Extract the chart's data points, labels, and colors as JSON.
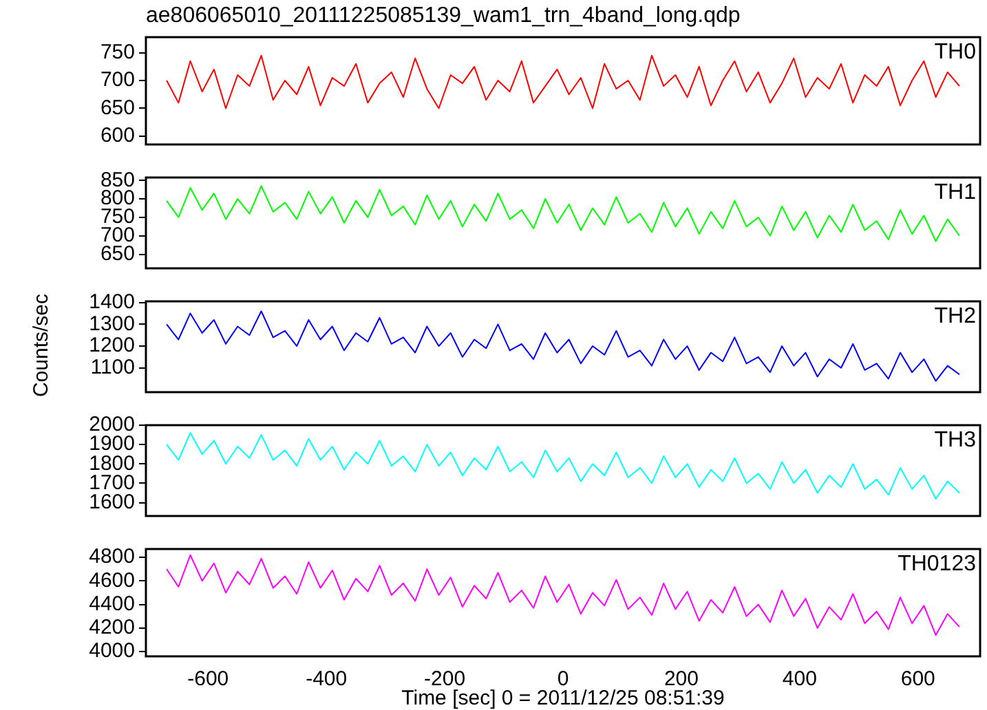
{
  "chart_data": [
    {
      "type": "line",
      "title": "ae806065010_20111225085139_wam1_trn_4band_long.qdp",
      "xlim": [
        -705,
        705
      ],
      "ylim": [
        585,
        778
      ],
      "yticks": [
        600,
        650,
        700,
        750
      ],
      "tick_labels": "y",
      "series": [
        {
          "name": "TH0",
          "color": "#ff0000",
          "x": [
            -670,
            -650,
            -630,
            -610,
            -590,
            -570,
            -550,
            -530,
            -510,
            -490,
            -470,
            -450,
            -430,
            -410,
            -390,
            -370,
            -350,
            -330,
            -310,
            -290,
            -270,
            -250,
            -230,
            -210,
            -190,
            -170,
            -150,
            -130,
            -110,
            -90,
            -70,
            -50,
            -30,
            -10,
            10,
            30,
            50,
            70,
            90,
            110,
            130,
            150,
            170,
            190,
            210,
            230,
            250,
            270,
            290,
            310,
            330,
            350,
            370,
            390,
            410,
            430,
            450,
            470,
            490,
            510,
            530,
            550,
            570,
            590,
            610,
            630,
            650,
            670
          ],
          "values": [
            700,
            660,
            735,
            680,
            720,
            650,
            710,
            690,
            745,
            665,
            700,
            675,
            725,
            655,
            705,
            690,
            730,
            660,
            695,
            715,
            670,
            740,
            685,
            650,
            710,
            695,
            725,
            665,
            700,
            680,
            735,
            660,
            690,
            720,
            675,
            705,
            650,
            730,
            685,
            700,
            665,
            745,
            690,
            710,
            670,
            725,
            655,
            700,
            735,
            680,
            715,
            660,
            695,
            740,
            670,
            705,
            685,
            730,
            660,
            710,
            690,
            725,
            655,
            700,
            735,
            670,
            715,
            690
          ]
        }
      ]
    },
    {
      "type": "line",
      "xlim": [
        -705,
        705
      ],
      "ylim": [
        612,
        858
      ],
      "yticks": [
        650,
        700,
        750,
        800,
        850
      ],
      "tick_labels": "y",
      "series": [
        {
          "name": "TH1",
          "color": "#00ff00",
          "x": [
            -670,
            -650,
            -630,
            -610,
            -590,
            -570,
            -550,
            -530,
            -510,
            -490,
            -470,
            -450,
            -430,
            -410,
            -390,
            -370,
            -350,
            -330,
            -310,
            -290,
            -270,
            -250,
            -230,
            -210,
            -190,
            -170,
            -150,
            -130,
            -110,
            -90,
            -70,
            -50,
            -30,
            -10,
            10,
            30,
            50,
            70,
            90,
            110,
            130,
            150,
            170,
            190,
            210,
            230,
            250,
            270,
            290,
            310,
            330,
            350,
            370,
            390,
            410,
            430,
            450,
            470,
            490,
            510,
            530,
            550,
            570,
            590,
            610,
            630,
            650,
            670
          ],
          "values": [
            795,
            750,
            830,
            770,
            815,
            745,
            800,
            760,
            835,
            765,
            790,
            745,
            820,
            760,
            805,
            735,
            795,
            750,
            825,
            755,
            780,
            730,
            810,
            745,
            795,
            725,
            785,
            740,
            815,
            745,
            770,
            720,
            800,
            735,
            785,
            715,
            775,
            730,
            805,
            735,
            760,
            710,
            790,
            725,
            775,
            705,
            765,
            720,
            795,
            725,
            750,
            700,
            780,
            715,
            765,
            695,
            755,
            710,
            785,
            715,
            740,
            690,
            770,
            705,
            755,
            685,
            745,
            700
          ]
        }
      ]
    },
    {
      "type": "line",
      "ylabel": "Counts/sec",
      "xlim": [
        -705,
        705
      ],
      "ylim": [
        989,
        1405
      ],
      "yticks": [
        1100,
        1200,
        1300,
        1400
      ],
      "tick_labels": "y",
      "series": [
        {
          "name": "TH2",
          "color": "#0000ff",
          "x": [
            -670,
            -650,
            -630,
            -610,
            -590,
            -570,
            -550,
            -530,
            -510,
            -490,
            -470,
            -450,
            -430,
            -410,
            -390,
            -370,
            -350,
            -330,
            -310,
            -290,
            -270,
            -250,
            -230,
            -210,
            -190,
            -170,
            -150,
            -130,
            -110,
            -90,
            -70,
            -50,
            -30,
            -10,
            10,
            30,
            50,
            70,
            90,
            110,
            130,
            150,
            170,
            190,
            210,
            230,
            250,
            270,
            290,
            310,
            330,
            350,
            370,
            390,
            410,
            430,
            450,
            470,
            490,
            510,
            530,
            550,
            570,
            590,
            610,
            630,
            650,
            670
          ],
          "values": [
            1300,
            1230,
            1350,
            1260,
            1320,
            1210,
            1290,
            1250,
            1360,
            1240,
            1270,
            1200,
            1320,
            1230,
            1290,
            1180,
            1260,
            1220,
            1330,
            1210,
            1240,
            1170,
            1290,
            1200,
            1260,
            1150,
            1230,
            1190,
            1300,
            1180,
            1210,
            1140,
            1260,
            1170,
            1230,
            1120,
            1200,
            1160,
            1270,
            1150,
            1180,
            1110,
            1230,
            1140,
            1200,
            1090,
            1170,
            1130,
            1240,
            1120,
            1150,
            1080,
            1200,
            1110,
            1170,
            1060,
            1140,
            1100,
            1210,
            1090,
            1120,
            1050,
            1170,
            1080,
            1140,
            1040,
            1110,
            1070
          ]
        }
      ]
    },
    {
      "type": "line",
      "xlim": [
        -705,
        705
      ],
      "ylim": [
        1531,
        2000
      ],
      "yticks": [
        1600,
        1700,
        1800,
        1900,
        2000
      ],
      "tick_labels": "y",
      "series": [
        {
          "name": "TH3",
          "color": "#00ffff",
          "x": [
            -670,
            -650,
            -630,
            -610,
            -590,
            -570,
            -550,
            -530,
            -510,
            -490,
            -470,
            -450,
            -430,
            -410,
            -390,
            -370,
            -350,
            -330,
            -310,
            -290,
            -270,
            -250,
            -230,
            -210,
            -190,
            -170,
            -150,
            -130,
            -110,
            -90,
            -70,
            -50,
            -30,
            -10,
            10,
            30,
            50,
            70,
            90,
            110,
            130,
            150,
            170,
            190,
            210,
            230,
            250,
            270,
            290,
            310,
            330,
            350,
            370,
            390,
            410,
            430,
            450,
            470,
            490,
            510,
            530,
            550,
            570,
            590,
            610,
            630,
            650,
            670
          ],
          "values": [
            1900,
            1820,
            1960,
            1850,
            1920,
            1800,
            1890,
            1830,
            1950,
            1820,
            1870,
            1790,
            1930,
            1820,
            1890,
            1770,
            1860,
            1800,
            1920,
            1790,
            1840,
            1760,
            1900,
            1790,
            1860,
            1740,
            1830,
            1770,
            1890,
            1760,
            1810,
            1730,
            1870,
            1760,
            1830,
            1710,
            1800,
            1740,
            1860,
            1730,
            1780,
            1700,
            1840,
            1730,
            1800,
            1680,
            1770,
            1710,
            1830,
            1700,
            1750,
            1670,
            1810,
            1700,
            1770,
            1650,
            1740,
            1680,
            1800,
            1670,
            1720,
            1640,
            1780,
            1670,
            1740,
            1620,
            1710,
            1650
          ]
        }
      ]
    },
    {
      "type": "line",
      "xlabel": "Time [sec] 0 = 2011/12/25 08:51:39",
      "xlim": [
        -705,
        705
      ],
      "xticks": [
        -600,
        -400,
        -200,
        0,
        200,
        400,
        600
      ],
      "ylim": [
        3960,
        4871
      ],
      "yticks": [
        4000,
        4200,
        4400,
        4600,
        4800
      ],
      "series": [
        {
          "name": "TH0123",
          "color": "#ff00ff",
          "x": [
            -670,
            -650,
            -630,
            -610,
            -590,
            -570,
            -550,
            -530,
            -510,
            -490,
            -470,
            -450,
            -430,
            -410,
            -390,
            -370,
            -350,
            -330,
            -310,
            -290,
            -270,
            -250,
            -230,
            -210,
            -190,
            -170,
            -150,
            -130,
            -110,
            -90,
            -70,
            -50,
            -30,
            -10,
            10,
            30,
            50,
            70,
            90,
            110,
            130,
            150,
            170,
            190,
            210,
            230,
            250,
            270,
            290,
            310,
            330,
            350,
            370,
            390,
            410,
            430,
            450,
            470,
            490,
            510,
            530,
            550,
            570,
            590,
            610,
            630,
            650,
            670
          ],
          "values": [
            4700,
            4550,
            4820,
            4600,
            4750,
            4500,
            4680,
            4570,
            4790,
            4540,
            4640,
            4490,
            4760,
            4540,
            4690,
            4440,
            4620,
            4510,
            4730,
            4480,
            4580,
            4430,
            4700,
            4480,
            4630,
            4380,
            4560,
            4450,
            4670,
            4420,
            4520,
            4370,
            4640,
            4420,
            4570,
            4320,
            4500,
            4390,
            4610,
            4360,
            4460,
            4310,
            4580,
            4360,
            4510,
            4260,
            4440,
            4330,
            4550,
            4300,
            4400,
            4250,
            4520,
            4300,
            4450,
            4200,
            4380,
            4270,
            4490,
            4240,
            4340,
            4190,
            4460,
            4240,
            4390,
            4140,
            4320,
            4210
          ]
        }
      ]
    }
  ]
}
